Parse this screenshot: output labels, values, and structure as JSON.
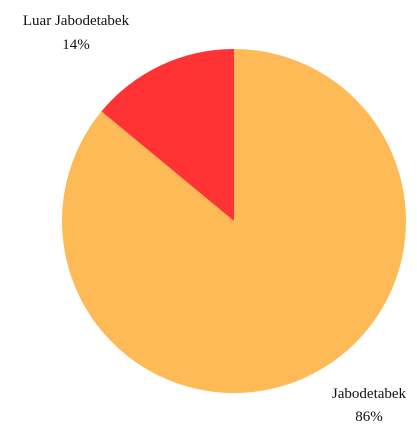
{
  "chart_data": {
    "type": "pie",
    "title": "",
    "start_angle_deg": 0,
    "direction": "clockwise",
    "slices": [
      {
        "label": "Jabodetabek",
        "value": 86,
        "value_label": "86%",
        "color": "#FEBA57"
      },
      {
        "label": "Luar Jabodetabek",
        "value": 14,
        "value_label": "14%",
        "color": "#FF3333"
      }
    ],
    "legend": "none"
  }
}
